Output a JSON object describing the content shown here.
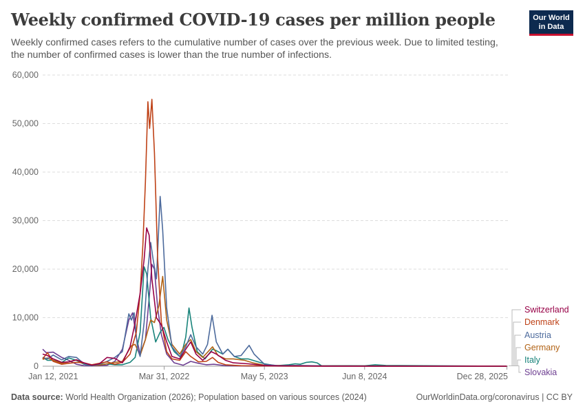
{
  "header": {
    "title": "Weekly confirmed COVID-19 cases per million people",
    "subtitle": "Weekly confirmed cases refers to the cumulative number of cases over the previous week. Due to limited testing, the number of confirmed cases is lower than the true number of infections.",
    "logo_line1": "Our World",
    "logo_line2": "in Data"
  },
  "footer": {
    "source_label": "Data source:",
    "source_text": "World Health Organization (2026); Population based on various sources (2024)",
    "url": "OurWorldinData.org/coronavirus | CC BY"
  },
  "chart_data": {
    "type": "line",
    "title": "Weekly confirmed COVID-19 cases per million people",
    "xlabel": "",
    "ylabel": "",
    "x_range": [
      "2020-12-01",
      "2026-01-01"
    ],
    "ylim": [
      0,
      60000
    ],
    "y_ticks": [
      0,
      10000,
      20000,
      30000,
      40000,
      50000,
      60000
    ],
    "y_tick_labels": [
      "0",
      "10,000",
      "20,000",
      "30,000",
      "40,000",
      "50,000",
      "60,000"
    ],
    "x_ticks": [
      "2021-01-12",
      "2022-03-31",
      "2023-05-05",
      "2024-06-08",
      "2025-12-28"
    ],
    "x_tick_labels": [
      "Jan 12, 2021",
      "Mar 31, 2022",
      "May 5, 2023",
      "Jun 8, 2024",
      "Dec 28, 2025"
    ],
    "grid": true,
    "legend_position": "right",
    "series": [
      {
        "name": "Switzerland",
        "color": "#970046",
        "points": [
          [
            "2020-12-01",
            2500
          ],
          [
            "2020-12-20",
            2200
          ],
          [
            "2021-01-12",
            1500
          ],
          [
            "2021-02-15",
            800
          ],
          [
            "2021-03-15",
            900
          ],
          [
            "2021-04-15",
            1300
          ],
          [
            "2021-05-15",
            700
          ],
          [
            "2021-06-15",
            200
          ],
          [
            "2021-07-15",
            500
          ],
          [
            "2021-08-15",
            1800
          ],
          [
            "2021-09-15",
            1600
          ],
          [
            "2021-10-15",
            700
          ],
          [
            "2021-11-15",
            4000
          ],
          [
            "2021-12-05",
            9000
          ],
          [
            "2021-12-25",
            15000
          ],
          [
            "2022-01-10",
            22000
          ],
          [
            "2022-01-20",
            28500
          ],
          [
            "2022-01-30",
            27000
          ],
          [
            "2022-02-10",
            18000
          ],
          [
            "2022-02-28",
            10000
          ],
          [
            "2022-03-20",
            8500
          ],
          [
            "2022-04-10",
            5000
          ],
          [
            "2022-05-01",
            2000
          ],
          [
            "2022-06-01",
            1500
          ],
          [
            "2022-06-25",
            3500
          ],
          [
            "2022-07-15",
            5000
          ],
          [
            "2022-08-05",
            2500
          ],
          [
            "2022-09-01",
            1200
          ],
          [
            "2022-10-05",
            3000
          ],
          [
            "2022-10-25",
            2500
          ],
          [
            "2022-12-01",
            1200
          ],
          [
            "2023-01-01",
            700
          ],
          [
            "2023-03-01",
            500
          ],
          [
            "2023-05-05",
            150
          ],
          [
            "2023-07-01",
            50
          ],
          [
            "2023-09-01",
            80
          ],
          [
            "2024-01-01",
            10
          ],
          [
            "2025-12-28",
            0
          ]
        ]
      },
      {
        "name": "Denmark",
        "color": "#be4116",
        "points": [
          [
            "2020-12-01",
            1500
          ],
          [
            "2020-12-20",
            2800
          ],
          [
            "2021-01-12",
            1000
          ],
          [
            "2021-02-15",
            400
          ],
          [
            "2021-03-15",
            600
          ],
          [
            "2021-04-15",
            800
          ],
          [
            "2021-05-15",
            700
          ],
          [
            "2021-06-15",
            300
          ],
          [
            "2021-07-15",
            600
          ],
          [
            "2021-08-15",
            900
          ],
          [
            "2021-09-15",
            400
          ],
          [
            "2021-10-15",
            800
          ],
          [
            "2021-11-15",
            2500
          ],
          [
            "2021-12-10",
            7000
          ],
          [
            "2021-12-25",
            15000
          ],
          [
            "2022-01-05",
            25000
          ],
          [
            "2022-01-15",
            38000
          ],
          [
            "2022-01-25",
            54500
          ],
          [
            "2022-02-01",
            49000
          ],
          [
            "2022-02-10",
            55000
          ],
          [
            "2022-02-20",
            44000
          ],
          [
            "2022-03-05",
            22000
          ],
          [
            "2022-03-20",
            9000
          ],
          [
            "2022-04-10",
            3000
          ],
          [
            "2022-05-01",
            1500
          ],
          [
            "2022-06-01",
            1200
          ],
          [
            "2022-06-25",
            3000
          ],
          [
            "2022-07-15",
            2000
          ],
          [
            "2022-08-15",
            900
          ],
          [
            "2022-09-15",
            1000
          ],
          [
            "2022-10-10",
            1800
          ],
          [
            "2022-11-01",
            800
          ],
          [
            "2022-12-01",
            300
          ],
          [
            "2023-02-01",
            100
          ],
          [
            "2023-05-05",
            50
          ],
          [
            "2023-09-01",
            20
          ],
          [
            "2025-12-28",
            0
          ]
        ]
      },
      {
        "name": "Austria",
        "color": "#4c6a9c",
        "points": [
          [
            "2020-12-01",
            1800
          ],
          [
            "2020-12-20",
            1500
          ],
          [
            "2021-01-12",
            2300
          ],
          [
            "2021-02-15",
            1300
          ],
          [
            "2021-03-15",
            2000
          ],
          [
            "2021-04-15",
            1800
          ],
          [
            "2021-05-15",
            500
          ],
          [
            "2021-06-15",
            100
          ],
          [
            "2021-07-15",
            400
          ],
          [
            "2021-08-15",
            1000
          ],
          [
            "2021-09-15",
            1800
          ],
          [
            "2021-10-15",
            3000
          ],
          [
            "2021-11-10",
            10800
          ],
          [
            "2021-11-20",
            9500
          ],
          [
            "2021-12-01",
            11000
          ],
          [
            "2021-12-15",
            3500
          ],
          [
            "2021-12-25",
            2000
          ],
          [
            "2022-01-10",
            9000
          ],
          [
            "2022-01-25",
            20000
          ],
          [
            "2022-02-05",
            25500
          ],
          [
            "2022-02-15",
            22000
          ],
          [
            "2022-02-28",
            18000
          ],
          [
            "2022-03-15",
            35000
          ],
          [
            "2022-03-25",
            28000
          ],
          [
            "2022-04-10",
            12000
          ],
          [
            "2022-05-01",
            4000
          ],
          [
            "2022-06-01",
            2000
          ],
          [
            "2022-06-25",
            4000
          ],
          [
            "2022-07-15",
            6500
          ],
          [
            "2022-08-05",
            4000
          ],
          [
            "2022-09-01",
            2500
          ],
          [
            "2022-09-20",
            4500
          ],
          [
            "2022-10-08",
            10500
          ],
          [
            "2022-10-25",
            5000
          ],
          [
            "2022-11-20",
            2500
          ],
          [
            "2022-12-10",
            3500
          ],
          [
            "2023-01-05",
            2000
          ],
          [
            "2023-02-01",
            2200
          ],
          [
            "2023-03-05",
            4300
          ],
          [
            "2023-03-25",
            2500
          ],
          [
            "2023-05-05",
            400
          ],
          [
            "2023-07-01",
            100
          ],
          [
            "2023-09-01",
            150
          ],
          [
            "2024-01-01",
            50
          ],
          [
            "2025-12-28",
            0
          ]
        ]
      },
      {
        "name": "Germany",
        "color": "#b16214",
        "points": [
          [
            "2020-12-01",
            1400
          ],
          [
            "2020-12-20",
            1700
          ],
          [
            "2021-01-12",
            1200
          ],
          [
            "2021-02-15",
            600
          ],
          [
            "2021-03-15",
            900
          ],
          [
            "2021-04-15",
            1300
          ],
          [
            "2021-05-15",
            500
          ],
          [
            "2021-06-15",
            100
          ],
          [
            "2021-07-15",
            200
          ],
          [
            "2021-08-15",
            500
          ],
          [
            "2021-09-15",
            800
          ],
          [
            "2021-10-15",
            1000
          ],
          [
            "2021-11-20",
            4200
          ],
          [
            "2021-12-05",
            4500
          ],
          [
            "2021-12-25",
            2200
          ],
          [
            "2022-01-15",
            5500
          ],
          [
            "2022-02-05",
            9500
          ],
          [
            "2022-02-20",
            9000
          ],
          [
            "2022-03-10",
            12500
          ],
          [
            "2022-03-25",
            18500
          ],
          [
            "2022-04-10",
            9500
          ],
          [
            "2022-05-01",
            4500
          ],
          [
            "2022-06-01",
            2500
          ],
          [
            "2022-06-25",
            4500
          ],
          [
            "2022-07-15",
            5500
          ],
          [
            "2022-08-05",
            3000
          ],
          [
            "2022-09-01",
            1800
          ],
          [
            "2022-10-10",
            4000
          ],
          [
            "2022-11-01",
            2200
          ],
          [
            "2022-12-01",
            1500
          ],
          [
            "2023-01-01",
            1500
          ],
          [
            "2023-02-15",
            1200
          ],
          [
            "2023-03-20",
            700
          ],
          [
            "2023-05-05",
            200
          ],
          [
            "2023-08-01",
            100
          ],
          [
            "2024-01-01",
            50
          ],
          [
            "2025-12-28",
            0
          ]
        ]
      },
      {
        "name": "Italy",
        "color": "#18837a",
        "points": [
          [
            "2020-12-01",
            1800
          ],
          [
            "2020-12-20",
            1200
          ],
          [
            "2021-01-12",
            1200
          ],
          [
            "2021-02-15",
            800
          ],
          [
            "2021-03-15",
            1700
          ],
          [
            "2021-04-15",
            1200
          ],
          [
            "2021-05-15",
            400
          ],
          [
            "2021-06-15",
            100
          ],
          [
            "2021-07-15",
            300
          ],
          [
            "2021-08-15",
            500
          ],
          [
            "2021-09-15",
            300
          ],
          [
            "2021-10-15",
            300
          ],
          [
            "2021-11-15",
            800
          ],
          [
            "2021-12-05",
            1800
          ],
          [
            "2021-12-25",
            7000
          ],
          [
            "2022-01-10",
            20500
          ],
          [
            "2022-01-20",
            19000
          ],
          [
            "2022-02-05",
            10000
          ],
          [
            "2022-02-25",
            5000
          ],
          [
            "2022-03-15",
            7000
          ],
          [
            "2022-03-30",
            8000
          ],
          [
            "2022-04-15",
            5500
          ],
          [
            "2022-05-10",
            3000
          ],
          [
            "2022-06-05",
            1800
          ],
          [
            "2022-06-25",
            6000
          ],
          [
            "2022-07-08",
            12000
          ],
          [
            "2022-07-20",
            8000
          ],
          [
            "2022-08-10",
            3000
          ],
          [
            "2022-09-10",
            1500
          ],
          [
            "2022-10-10",
            3500
          ],
          [
            "2022-10-25",
            3200
          ],
          [
            "2022-11-20",
            2500
          ],
          [
            "2022-12-10",
            3500
          ],
          [
            "2023-01-05",
            2000
          ],
          [
            "2023-02-01",
            1500
          ],
          [
            "2023-03-01",
            1500
          ],
          [
            "2023-05-05",
            500
          ],
          [
            "2023-06-20",
            100
          ],
          [
            "2023-08-10",
            300
          ],
          [
            "2023-09-05",
            500
          ],
          [
            "2023-09-25",
            400
          ],
          [
            "2023-10-20",
            800
          ],
          [
            "2023-11-10",
            900
          ],
          [
            "2023-12-01",
            700
          ],
          [
            "2023-12-20",
            50
          ],
          [
            "2024-02-01",
            100
          ],
          [
            "2024-06-08",
            80
          ],
          [
            "2024-07-20",
            300
          ],
          [
            "2024-09-01",
            150
          ],
          [
            "2025-12-28",
            0
          ]
        ]
      },
      {
        "name": "Slovakia",
        "color": "#6d3e91",
        "points": [
          [
            "2020-12-01",
            3500
          ],
          [
            "2020-12-15",
            2800
          ],
          [
            "2021-01-12",
            2900
          ],
          [
            "2021-02-15",
            1800
          ],
          [
            "2021-03-15",
            1200
          ],
          [
            "2021-04-15",
            400
          ],
          [
            "2021-05-15",
            100
          ],
          [
            "2021-06-15",
            50
          ],
          [
            "2021-07-15",
            100
          ],
          [
            "2021-08-15",
            200
          ],
          [
            "2021-09-15",
            1000
          ],
          [
            "2021-10-15",
            3500
          ],
          [
            "2021-11-10",
            9500
          ],
          [
            "2021-11-25",
            11000
          ],
          [
            "2021-12-10",
            6000
          ],
          [
            "2021-12-25",
            2500
          ],
          [
            "2022-01-15",
            5500
          ],
          [
            "2022-01-30",
            14000
          ],
          [
            "2022-02-10",
            21000
          ],
          [
            "2022-02-20",
            20000
          ],
          [
            "2022-03-05",
            12000
          ],
          [
            "2022-03-20",
            6500
          ],
          [
            "2022-04-10",
            2500
          ],
          [
            "2022-05-10",
            700
          ],
          [
            "2022-06-15",
            200
          ],
          [
            "2022-07-15",
            1000
          ],
          [
            "2022-08-15",
            600
          ],
          [
            "2022-09-15",
            300
          ],
          [
            "2022-10-15",
            400
          ],
          [
            "2022-12-01",
            100
          ],
          [
            "2023-03-01",
            30
          ],
          [
            "2025-12-28",
            0
          ]
        ]
      }
    ]
  }
}
